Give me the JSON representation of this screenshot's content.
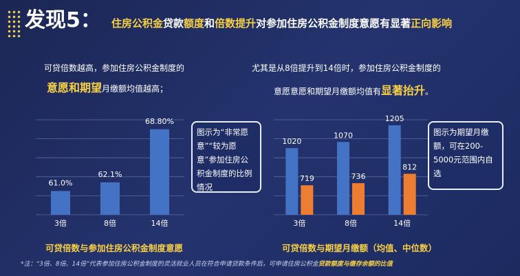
{
  "header": {
    "title": "发现5：",
    "subtitle_segments": [
      {
        "text": "住房公积金",
        "color": "#f7d046"
      },
      {
        "text": "贷款",
        "color": "#ffffff"
      },
      {
        "text": "额度",
        "color": "#f7d046"
      },
      {
        "text": "和",
        "color": "#ffffff"
      },
      {
        "text": "倍数提升",
        "color": "#f7d046"
      },
      {
        "text": "对参加住房公积金制度意愿有显著",
        "color": "#ffffff"
      },
      {
        "text": "正向影响",
        "color": "#f7d046"
      }
    ]
  },
  "left_text": {
    "line1": "可贷倍数越高，参加住房公积金制度的",
    "highlight": "意愿和期望",
    "rest": "月缴额均值越高；"
  },
  "right_text": {
    "line1": "尤其是从8倍提升到14倍时，参加住房公积金制度的",
    "before": "意愿意愿和期望月缴额均值有",
    "highlight": "显著抬升",
    "after": "。"
  },
  "chart_data": [
    {
      "type": "bar",
      "title": "可贷倍数与参加住房公积金制度意愿",
      "annotation": "图示为“非常愿意”“较为愿意”参加住房公积金制度的比例情况",
      "categories": [
        "3倍",
        "8倍",
        "14倍"
      ],
      "values": [
        61.0,
        62.1,
        68.8
      ],
      "value_labels": [
        "61.0%",
        "62.1%",
        "68.80%"
      ],
      "color": "#4472c4",
      "ylim": [
        58,
        70
      ],
      "grid": true
    },
    {
      "type": "bar",
      "title": "可贷倍数与期望月缴额（均值、中位数）",
      "annotation": "图示为期望月缴额，可在200-5000元范围内自选",
      "categories": [
        "3倍",
        "8倍",
        "14倍"
      ],
      "series": [
        {
          "color": "#4472c4",
          "values": [
            1020,
            1070,
            1205
          ]
        },
        {
          "color": "#ed7d31",
          "values": [
            719,
            736,
            812
          ]
        }
      ],
      "ylim": [
        480,
        1250
      ],
      "grid": true
    }
  ],
  "footnote": {
    "text": "*注：“3倍、8倍、14倍”代表参加住房公积金制度的灵活就业人员在符合申请贷款条件后，可申请住房公积金",
    "highlight": "贷款额度与缴存余额的比值"
  }
}
